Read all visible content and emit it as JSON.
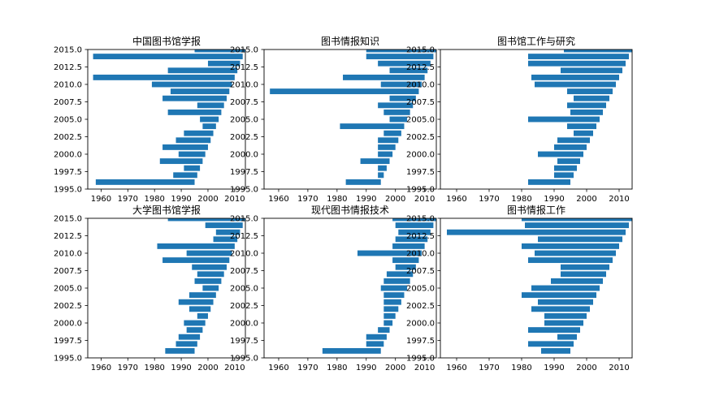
{
  "chart_data": [
    {
      "type": "bar",
      "orientation": "horizontal",
      "title": "中国图书馆学报",
      "xlim": [
        1955,
        2014
      ],
      "ylim": [
        1995,
        2015
      ],
      "xticks": [
        "1960",
        "1970",
        "1980",
        "1990",
        "2000",
        "2010"
      ],
      "yticks": [
        "1995.0",
        "1997.5",
        "2000.0",
        "2002.5",
        "2005.0",
        "2007.5",
        "2010.0",
        "2012.5",
        "2015.0"
      ],
      "color": "#1f77b4",
      "bars": [
        {
          "y": 1996,
          "start": 1958,
          "end": 1995
        },
        {
          "y": 1997,
          "start": 1987,
          "end": 1996
        },
        {
          "y": 1998,
          "start": 1991,
          "end": 1997
        },
        {
          "y": 1999,
          "start": 1982,
          "end": 1998
        },
        {
          "y": 2000,
          "start": 1989,
          "end": 1999
        },
        {
          "y": 2001,
          "start": 1983,
          "end": 2000
        },
        {
          "y": 2002,
          "start": 1988,
          "end": 2001
        },
        {
          "y": 2003,
          "start": 1991,
          "end": 2002
        },
        {
          "y": 2004,
          "start": 1998,
          "end": 2003
        },
        {
          "y": 2005,
          "start": 1997,
          "end": 2004
        },
        {
          "y": 2006,
          "start": 1985,
          "end": 2005
        },
        {
          "y": 2007,
          "start": 1996,
          "end": 2006
        },
        {
          "y": 2008,
          "start": 1983,
          "end": 2007
        },
        {
          "y": 2009,
          "start": 1986,
          "end": 2008
        },
        {
          "y": 2010,
          "start": 1979,
          "end": 2009
        },
        {
          "y": 2011,
          "start": 1957,
          "end": 2010
        },
        {
          "y": 2012,
          "start": 1985,
          "end": 2011
        },
        {
          "y": 2013,
          "start": 2000,
          "end": 2012
        },
        {
          "y": 2014,
          "start": 1957,
          "end": 2013
        },
        {
          "y": 2015,
          "start": 1995,
          "end": 2014
        }
      ]
    },
    {
      "type": "bar",
      "orientation": "horizontal",
      "title": "图书情报知识",
      "xlim": [
        1955,
        2014
      ],
      "ylim": [
        1995,
        2015
      ],
      "xticks": [
        "1960",
        "1970",
        "1980",
        "1990",
        "2000",
        "2010"
      ],
      "yticks": [
        "1995.0",
        "1997.5",
        "2000.0",
        "2002.5",
        "2005.0",
        "2007.5",
        "2010.0",
        "2012.5",
        "2015.0"
      ],
      "color": "#1f77b4",
      "bars": [
        {
          "y": 1996,
          "start": 1983,
          "end": 1995
        },
        {
          "y": 1997,
          "start": 1994,
          "end": 1996
        },
        {
          "y": 1998,
          "start": 1994,
          "end": 1997
        },
        {
          "y": 1999,
          "start": 1988,
          "end": 1998
        },
        {
          "y": 2000,
          "start": 1994,
          "end": 1999
        },
        {
          "y": 2001,
          "start": 1994,
          "end": 2000
        },
        {
          "y": 2002,
          "start": 1994,
          "end": 2001
        },
        {
          "y": 2003,
          "start": 1996,
          "end": 2002
        },
        {
          "y": 2004,
          "start": 1981,
          "end": 2003
        },
        {
          "y": 2005,
          "start": 1998,
          "end": 2004
        },
        {
          "y": 2006,
          "start": 1996,
          "end": 2005
        },
        {
          "y": 2007,
          "start": 1994,
          "end": 2006
        },
        {
          "y": 2008,
          "start": 1998,
          "end": 2007
        },
        {
          "y": 2009,
          "start": 1957,
          "end": 2008
        },
        {
          "y": 2010,
          "start": 1995,
          "end": 2009
        },
        {
          "y": 2011,
          "start": 1982,
          "end": 2010
        },
        {
          "y": 2012,
          "start": 1998,
          "end": 2011
        },
        {
          "y": 2013,
          "start": 1994,
          "end": 2012
        },
        {
          "y": 2014,
          "start": 1990,
          "end": 2013
        },
        {
          "y": 2015,
          "start": 1990,
          "end": 2014
        }
      ]
    },
    {
      "type": "bar",
      "orientation": "horizontal",
      "title": "图书馆工作与研究",
      "xlim": [
        1955,
        2014
      ],
      "ylim": [
        1995,
        2015
      ],
      "xticks": [
        "1960",
        "1970",
        "1980",
        "1990",
        "2000",
        "2010"
      ],
      "yticks": [
        "1995.0",
        "1997.5",
        "2000.0",
        "2002.5",
        "2005.0",
        "2007.5",
        "2010.0",
        "2012.5",
        "2015.0"
      ],
      "color": "#1f77b4",
      "bars": [
        {
          "y": 1996,
          "start": 1982,
          "end": 1995
        },
        {
          "y": 1997,
          "start": 1990,
          "end": 1996
        },
        {
          "y": 1998,
          "start": 1990,
          "end": 1997
        },
        {
          "y": 1999,
          "start": 1991,
          "end": 1998
        },
        {
          "y": 2000,
          "start": 1985,
          "end": 1999
        },
        {
          "y": 2001,
          "start": 1990,
          "end": 2000
        },
        {
          "y": 2002,
          "start": 1991,
          "end": 2001
        },
        {
          "y": 2003,
          "start": 1996,
          "end": 2002
        },
        {
          "y": 2004,
          "start": 1994,
          "end": 2003
        },
        {
          "y": 2005,
          "start": 1982,
          "end": 2004
        },
        {
          "y": 2006,
          "start": 1995,
          "end": 2005
        },
        {
          "y": 2007,
          "start": 1994,
          "end": 2006
        },
        {
          "y": 2008,
          "start": 1996,
          "end": 2007
        },
        {
          "y": 2009,
          "start": 1994,
          "end": 2008
        },
        {
          "y": 2010,
          "start": 1984,
          "end": 2009
        },
        {
          "y": 2011,
          "start": 1983,
          "end": 2010
        },
        {
          "y": 2012,
          "start": 1992,
          "end": 2011
        },
        {
          "y": 2013,
          "start": 1982,
          "end": 2012
        },
        {
          "y": 2014,
          "start": 1982,
          "end": 2013
        },
        {
          "y": 2015,
          "start": 1993,
          "end": 2014
        }
      ]
    },
    {
      "type": "bar",
      "orientation": "horizontal",
      "title": "大学图书馆学报",
      "xlim": [
        1955,
        2014
      ],
      "ylim": [
        1995,
        2015
      ],
      "xticks": [
        "1960",
        "1970",
        "1980",
        "1990",
        "2000",
        "2010"
      ],
      "yticks": [
        "1995.0",
        "1997.5",
        "2000.0",
        "2002.5",
        "2005.0",
        "2007.5",
        "2010.0",
        "2012.5",
        "2015.0"
      ],
      "color": "#1f77b4",
      "bars": [
        {
          "y": 1996,
          "start": 1984,
          "end": 1995
        },
        {
          "y": 1997,
          "start": 1988,
          "end": 1996
        },
        {
          "y": 1998,
          "start": 1989,
          "end": 1997
        },
        {
          "y": 1999,
          "start": 1992,
          "end": 1998
        },
        {
          "y": 2000,
          "start": 1991,
          "end": 1999
        },
        {
          "y": 2001,
          "start": 1996,
          "end": 2000
        },
        {
          "y": 2002,
          "start": 1993,
          "end": 2001
        },
        {
          "y": 2003,
          "start": 1989,
          "end": 2002
        },
        {
          "y": 2004,
          "start": 1993,
          "end": 2003
        },
        {
          "y": 2005,
          "start": 1998,
          "end": 2004
        },
        {
          "y": 2006,
          "start": 1995,
          "end": 2005
        },
        {
          "y": 2007,
          "start": 1996,
          "end": 2006
        },
        {
          "y": 2008,
          "start": 1994,
          "end": 2007
        },
        {
          "y": 2009,
          "start": 1983,
          "end": 2008
        },
        {
          "y": 2010,
          "start": 1992,
          "end": 2009
        },
        {
          "y": 2011,
          "start": 1981,
          "end": 2010
        },
        {
          "y": 2012,
          "start": 2002,
          "end": 2011
        },
        {
          "y": 2013,
          "start": 2003,
          "end": 2012
        },
        {
          "y": 2014,
          "start": 1999,
          "end": 2013
        },
        {
          "y": 2015,
          "start": 1985,
          "end": 2014
        }
      ]
    },
    {
      "type": "bar",
      "orientation": "horizontal",
      "title": "现代图书情报技术",
      "xlim": [
        1955,
        2014
      ],
      "ylim": [
        1995,
        2015
      ],
      "xticks": [
        "1960",
        "1970",
        "1980",
        "1990",
        "2000",
        "2010"
      ],
      "yticks": [
        "1995.0",
        "1997.5",
        "2000.0",
        "2002.5",
        "2005.0",
        "2007.5",
        "2010.0",
        "2012.5",
        "2015.0"
      ],
      "color": "#1f77b4",
      "bars": [
        {
          "y": 1996,
          "start": 1975,
          "end": 1995
        },
        {
          "y": 1997,
          "start": 1990,
          "end": 1996
        },
        {
          "y": 1998,
          "start": 1990,
          "end": 1997
        },
        {
          "y": 1999,
          "start": 1994,
          "end": 1998
        },
        {
          "y": 2000,
          "start": 1996,
          "end": 1999
        },
        {
          "y": 2001,
          "start": 1996,
          "end": 2000
        },
        {
          "y": 2002,
          "start": 1996,
          "end": 2001
        },
        {
          "y": 2003,
          "start": 1996,
          "end": 2002
        },
        {
          "y": 2004,
          "start": 1996,
          "end": 2003
        },
        {
          "y": 2005,
          "start": 1995,
          "end": 2004
        },
        {
          "y": 2006,
          "start": 1996,
          "end": 2005
        },
        {
          "y": 2007,
          "start": 1997,
          "end": 2006
        },
        {
          "y": 2008,
          "start": 2000,
          "end": 2007
        },
        {
          "y": 2009,
          "start": 1999,
          "end": 2008
        },
        {
          "y": 2010,
          "start": 1987,
          "end": 2009
        },
        {
          "y": 2011,
          "start": 1999,
          "end": 2010
        },
        {
          "y": 2012,
          "start": 2000,
          "end": 2011
        },
        {
          "y": 2013,
          "start": 2001,
          "end": 2012
        },
        {
          "y": 2014,
          "start": 2000,
          "end": 2013
        },
        {
          "y": 2015,
          "start": 1999,
          "end": 2014
        }
      ]
    },
    {
      "type": "bar",
      "orientation": "horizontal",
      "title": "图书情报工作",
      "xlim": [
        1955,
        2014
      ],
      "ylim": [
        1995,
        2015
      ],
      "xticks": [
        "1960",
        "1970",
        "1980",
        "1990",
        "2000",
        "2010"
      ],
      "yticks": [
        "1995.0",
        "1997.5",
        "2000.0",
        "2002.5",
        "2005.0",
        "2007.5",
        "2010.0",
        "2012.5",
        "2015.0"
      ],
      "color": "#1f77b4",
      "bars": [
        {
          "y": 1996,
          "start": 1986,
          "end": 1995
        },
        {
          "y": 1997,
          "start": 1982,
          "end": 1996
        },
        {
          "y": 1998,
          "start": 1991,
          "end": 1997
        },
        {
          "y": 1999,
          "start": 1982,
          "end": 1998
        },
        {
          "y": 2000,
          "start": 1987,
          "end": 1999
        },
        {
          "y": 2001,
          "start": 1987,
          "end": 2000
        },
        {
          "y": 2002,
          "start": 1983,
          "end": 2001
        },
        {
          "y": 2003,
          "start": 1985,
          "end": 2002
        },
        {
          "y": 2004,
          "start": 1980,
          "end": 2003
        },
        {
          "y": 2005,
          "start": 1983,
          "end": 2004
        },
        {
          "y": 2006,
          "start": 1989,
          "end": 2005
        },
        {
          "y": 2007,
          "start": 1992,
          "end": 2006
        },
        {
          "y": 2008,
          "start": 1992,
          "end": 2007
        },
        {
          "y": 2009,
          "start": 1982,
          "end": 2008
        },
        {
          "y": 2010,
          "start": 1984,
          "end": 2009
        },
        {
          "y": 2011,
          "start": 1980,
          "end": 2010
        },
        {
          "y": 2012,
          "start": 1985,
          "end": 2011
        },
        {
          "y": 2013,
          "start": 1957,
          "end": 2012
        },
        {
          "y": 2014,
          "start": 1981,
          "end": 2013
        },
        {
          "y": 2015,
          "start": 1980,
          "end": 2014
        }
      ]
    }
  ]
}
